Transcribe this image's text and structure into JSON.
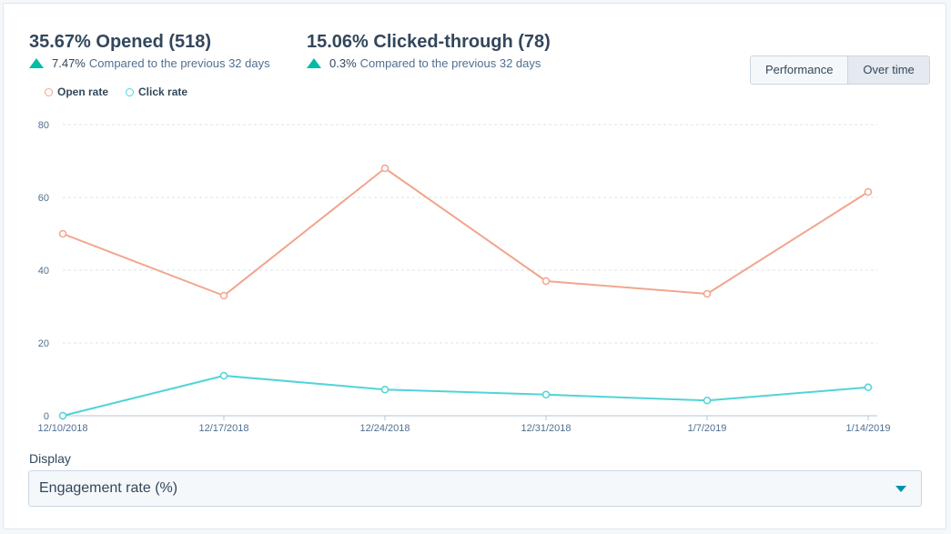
{
  "stats": [
    {
      "headline": "35.67% Opened (518)",
      "change": "7.47%",
      "compare": "Compared to the previous 32 days"
    },
    {
      "headline": "15.06% Clicked-through (78)",
      "change": "0.3%",
      "compare": "Compared to the previous 32 days"
    }
  ],
  "view_toggle": {
    "performance": "Performance",
    "over_time": "Over time",
    "active": "Over time"
  },
  "display": {
    "label": "Display",
    "selected": "Engagement rate (%)"
  },
  "colors": {
    "open": "#f2a58e",
    "click": "#51d3d9",
    "accent": "#00bda5",
    "caret": "#0091ae"
  },
  "chart_data": {
    "type": "line",
    "x": [
      "12/10/2018",
      "12/17/2018",
      "12/24/2018",
      "12/31/2018",
      "1/7/2019",
      "1/14/2019"
    ],
    "series": [
      {
        "name": "Open rate",
        "values": [
          50,
          33,
          68,
          37,
          33.5,
          61.5
        ]
      },
      {
        "name": "Click rate",
        "values": [
          0,
          11,
          7.2,
          5.8,
          4.2,
          7.8
        ]
      }
    ],
    "yticks": [
      0,
      20,
      40,
      60,
      80
    ],
    "ylim": [
      0,
      80
    ],
    "grid": true,
    "legend": "top-left"
  }
}
